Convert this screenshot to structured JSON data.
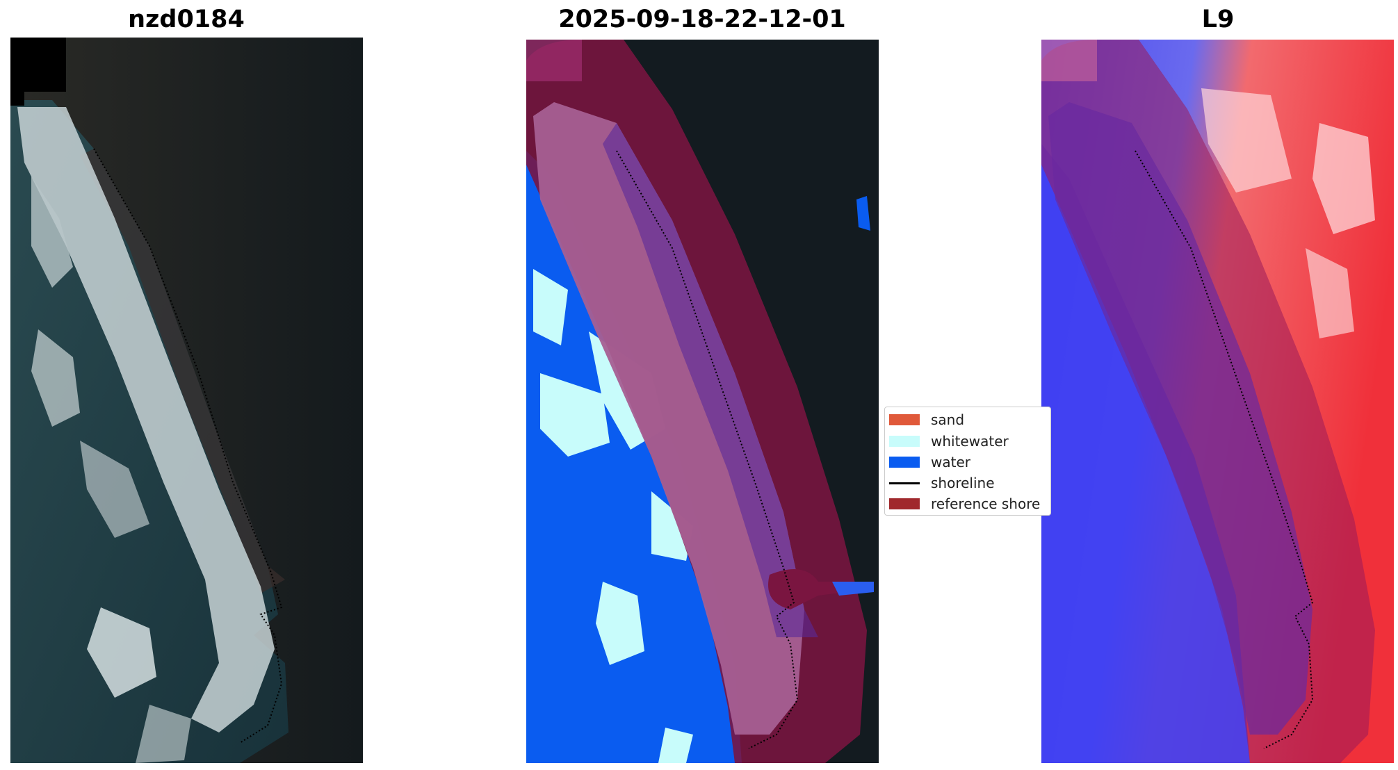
{
  "panels": [
    {
      "title": "nzd0184",
      "kind": "rgb-image"
    },
    {
      "title": "2025-09-18-22-12-01",
      "kind": "classified-image"
    },
    {
      "title": "L9",
      "kind": "index-image"
    }
  ],
  "legend": {
    "items": [
      {
        "label": "sand",
        "color": "#e0593a",
        "type": "patch"
      },
      {
        "label": "whitewater",
        "color": "#c8fcfb",
        "type": "patch"
      },
      {
        "label": "water",
        "color": "#0a5cf0",
        "type": "patch"
      },
      {
        "label": "shoreline",
        "color": "#000000",
        "type": "line"
      },
      {
        "label": "reference shore",
        "color": "#a0282c",
        "type": "patch"
      }
    ]
  },
  "colors": {
    "land_dark": "#141a1d",
    "sea_dark": "#1f3a42",
    "whitewater": "#c8fcfb",
    "water": "#0a5cf0",
    "buffer": "#7a1540",
    "sand_overlay": "#a65f92",
    "index_positive": "#f0303a",
    "index_negative": "#3a3af0"
  }
}
